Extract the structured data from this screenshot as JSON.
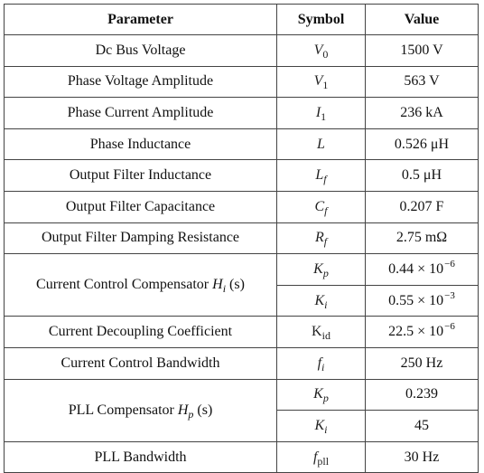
{
  "header": {
    "parameter": "Parameter",
    "symbol": "Symbol",
    "value": "Value"
  },
  "rows": [
    {
      "parameter": "Dc Bus Voltage",
      "symbol_base": "V",
      "symbol_sub": "0",
      "value": "1500 V"
    },
    {
      "parameter": "Phase Voltage Amplitude",
      "symbol_base": "V",
      "symbol_sub": "1",
      "value": "563 V"
    },
    {
      "parameter": "Phase Current Amplitude",
      "symbol_base": "I",
      "symbol_sub": "1",
      "value": "236 kA"
    },
    {
      "parameter": "Phase Inductance",
      "symbol_base": "L",
      "symbol_sub": "",
      "value": "0.526 μH"
    },
    {
      "parameter": "Output Filter Inductance",
      "symbol_base": "L",
      "symbol_sub": "f",
      "value": "0.5 μH"
    },
    {
      "parameter": "Output Filter Capacitance",
      "symbol_base": "C",
      "symbol_sub": "f",
      "value": "0.207 F"
    },
    {
      "parameter": "Output Filter Damping Resistance",
      "symbol_base": "R",
      "symbol_sub": "f",
      "value": "2.75 mΩ"
    }
  ],
  "current_comp": {
    "parameter_prefix": "Current Control Compensator ",
    "parameter_fn": "H",
    "parameter_fn_sub": "i",
    "parameter_arg": " (s)",
    "kp_base": "K",
    "kp_sub": "p",
    "kp_value": "0.44 × 10",
    "kp_exp": "−6",
    "ki_base": "K",
    "ki_sub": "i",
    "ki_value": "0.55 × 10",
    "ki_exp": "−3"
  },
  "decoupling": {
    "parameter": "Current Decoupling Coefficient",
    "symbol_base": "K",
    "symbol_sub": "id",
    "value": "22.5 × 10",
    "value_exp": "−6"
  },
  "bandwidth": {
    "parameter": "Current Control Bandwidth",
    "symbol_base": "f",
    "symbol_sub": "i",
    "value": "250 Hz"
  },
  "pll_comp": {
    "parameter_prefix": "PLL Compensator ",
    "parameter_fn": "H",
    "parameter_fn_sub": "p",
    "parameter_arg": " (s)",
    "kp_base": "K",
    "kp_sub": "p",
    "kp_value": "0.239",
    "ki_base": "K",
    "ki_sub": "i",
    "ki_value": "45"
  },
  "pll_bandwidth": {
    "parameter": "PLL Bandwidth",
    "symbol_base": "f",
    "symbol_sub": "pll",
    "value": "30 Hz"
  }
}
